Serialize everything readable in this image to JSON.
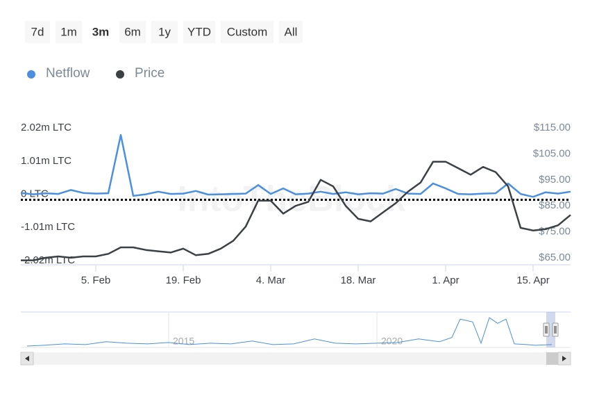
{
  "range_selector": {
    "buttons": [
      "7d",
      "1m",
      "3m",
      "6m",
      "1y",
      "YTD",
      "Custom",
      "All"
    ],
    "selected": 2
  },
  "watermark": "IntoTheBlock",
  "chart_data": [
    {
      "type": "line",
      "categories": [
        null,
        null,
        null,
        null,
        null,
        null,
        "5. Feb",
        null,
        null,
        null,
        null,
        null,
        null,
        "19. Feb",
        null,
        null,
        null,
        null,
        null,
        null,
        "4. Mar",
        null,
        null,
        null,
        null,
        null,
        null,
        "18. Mar",
        null,
        null,
        null,
        null,
        null,
        null,
        "1. Apr",
        null,
        null,
        null,
        null,
        null,
        null,
        "15. Apr",
        null,
        null,
        null
      ],
      "series": [
        {
          "name": "Netflow",
          "color": "#4a8fe0",
          "axis": "y",
          "values": [
            60000,
            20000,
            50000,
            30000,
            150000,
            60000,
            40000,
            50000,
            1830000,
            -30000,
            20000,
            100000,
            30000,
            40000,
            120000,
            10000,
            20000,
            30000,
            40000,
            300000,
            30000,
            200000,
            20000,
            40000,
            100000,
            30000,
            80000,
            20000,
            50000,
            40000,
            180000,
            40000,
            30000,
            350000,
            200000,
            30000,
            20000,
            40000,
            50000,
            350000,
            30000,
            -60000,
            80000,
            40000,
            100000
          ]
        },
        {
          "name": "Price",
          "color": "#3b4044",
          "axis": "y2",
          "values": [
            64,
            64,
            65,
            65.5,
            65,
            65.5,
            65.5,
            66.5,
            69,
            69,
            68,
            67.5,
            67,
            68.5,
            66,
            66.5,
            68.5,
            71.5,
            77,
            87,
            87,
            82,
            85,
            86.5,
            95,
            92.5,
            85,
            80,
            79,
            82.5,
            86,
            90.5,
            94,
            102,
            102,
            99.5,
            97,
            100,
            98,
            92.5,
            76.5,
            75.5,
            76,
            77.5,
            81.5
          ]
        }
      ],
      "ylim": [
        -2130000,
        2130000
      ],
      "yticks": [
        {
          "value": 2020000,
          "label": "2.02m LTC"
        },
        {
          "value": 1010000,
          "label": "1.01m LTC"
        },
        {
          "value": 0,
          "label": "0 LTC"
        },
        {
          "value": -1010000,
          "label": "-1.01m LTC"
        },
        {
          "value": -2020000,
          "label": "-2.02m LTC"
        }
      ],
      "y2lim": [
        62.3,
        116.1
      ],
      "y2ticks": [
        {
          "value": 115,
          "label": "$115.00"
        },
        {
          "value": 105,
          "label": "$105.00"
        },
        {
          "value": 95,
          "label": "$95.00"
        },
        {
          "value": 85,
          "label": "$85.00"
        },
        {
          "value": 75,
          "label": "$75.00"
        },
        {
          "value": 65,
          "label": "$65.00"
        }
      ],
      "zero_line": true,
      "legend": "top-left"
    },
    {
      "type": "navigator",
      "x": [
        2011.6,
        2012,
        2012.5,
        2013,
        2013.5,
        2014,
        2014.5,
        2015,
        2015.5,
        2016,
        2016.5,
        2017,
        2017.5,
        2018,
        2018.5,
        2019,
        2019.5,
        2020,
        2020.5,
        2021,
        2021.5,
        2021.8,
        2022,
        2022.3,
        2022.5,
        2022.7,
        2022.9,
        2023.1,
        2023.3,
        2023.6,
        2023.8,
        2024.2
      ],
      "values": [
        2,
        3,
        5,
        4,
        8,
        6,
        5,
        7,
        4,
        6,
        5,
        9,
        4,
        5,
        12,
        6,
        5,
        6,
        7,
        12,
        8,
        14,
        40,
        36,
        6,
        42,
        34,
        40,
        5,
        4,
        3,
        4
      ],
      "color": "#4a8fe0",
      "xlim": [
        2011.45,
        2024.65
      ],
      "ylim": [
        0,
        50
      ],
      "xticks": [
        {
          "value": 2015,
          "label": "2015"
        },
        {
          "value": 2020,
          "label": "2020"
        }
      ]
    }
  ]
}
